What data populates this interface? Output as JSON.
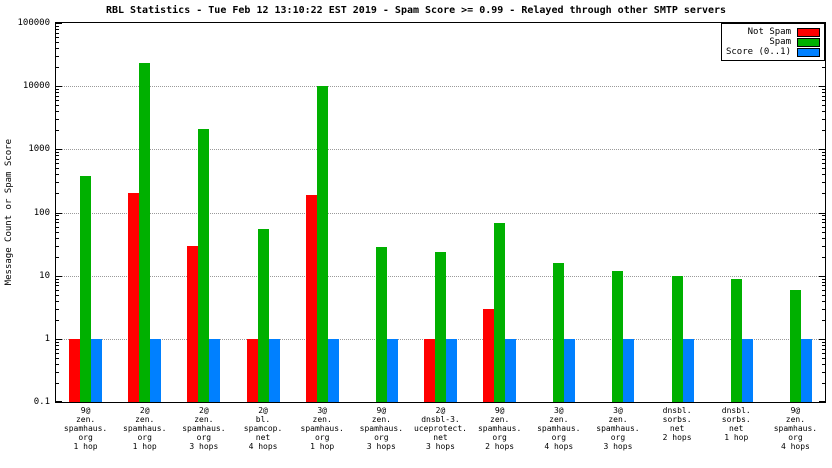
{
  "chart_data": {
    "type": "bar",
    "title": "RBL Statistics - Tue Feb 12 13:10:22 EST 2019 - Spam Score >= 0.99 - Relayed through other SMTP servers",
    "ylabel": "Message Count or Spam Score",
    "scale": "log",
    "ylim": [
      0.1,
      100000
    ],
    "grid": "horizontal-dotted",
    "legend_position": "top-right",
    "yticks": [
      100000,
      10000,
      1000,
      100,
      10,
      1,
      0.1
    ],
    "ytick_labels": [
      "100000",
      "10000",
      "1000",
      "100",
      "10",
      "1",
      "0.1"
    ],
    "legend": [
      {
        "name": "Not Spam",
        "color": "#ff0000"
      },
      {
        "name": "Spam",
        "color": "#00b000"
      },
      {
        "name": "Score (0..1)",
        "color": "#0080ff"
      }
    ],
    "categories": [
      [
        "9@",
        "zen.",
        "spamhaus.",
        "org",
        "1 hop"
      ],
      [
        "2@",
        "zen.",
        "spamhaus.",
        "org",
        "1 hop"
      ],
      [
        "2@",
        "zen.",
        "spamhaus.",
        "org",
        "3 hops"
      ],
      [
        "2@",
        "bl.",
        "spamcop.",
        "net",
        "4 hops"
      ],
      [
        "3@",
        "zen.",
        "spamhaus.",
        "org",
        "1 hop"
      ],
      [
        "9@",
        "zen.",
        "spamhaus.",
        "org",
        "3 hops"
      ],
      [
        "2@",
        "dnsbl-3.",
        "uceprotect.",
        "net",
        "3 hops"
      ],
      [
        "9@",
        "zen.",
        "spamhaus.",
        "org",
        "2 hops"
      ],
      [
        "3@",
        "zen.",
        "spamhaus.",
        "org",
        "4 hops"
      ],
      [
        "3@",
        "zen.",
        "spamhaus.",
        "org",
        "3 hops"
      ],
      [
        "dnsbl.",
        "sorbs.",
        "net",
        "2 hops"
      ],
      [
        "dnsbl.",
        "sorbs.",
        "net",
        "1 hop"
      ],
      [
        "9@",
        "zen.",
        "spamhaus.",
        "org",
        "4 hops"
      ]
    ],
    "series": [
      {
        "name": "Not Spam",
        "color": "#ff0000",
        "values": [
          1,
          200,
          30,
          1,
          190,
          null,
          1,
          3,
          null,
          null,
          null,
          null,
          null
        ]
      },
      {
        "name": "Spam",
        "color": "#00b000",
        "values": [
          380,
          23000,
          2100,
          55,
          10000,
          28,
          24,
          68,
          16,
          12,
          10,
          9,
          6
        ]
      },
      {
        "name": "Score (0..1)",
        "color": "#0080ff",
        "values": [
          1,
          1,
          1,
          1,
          1,
          1,
          1,
          1,
          1,
          1,
          1,
          1,
          1
        ]
      }
    ]
  }
}
